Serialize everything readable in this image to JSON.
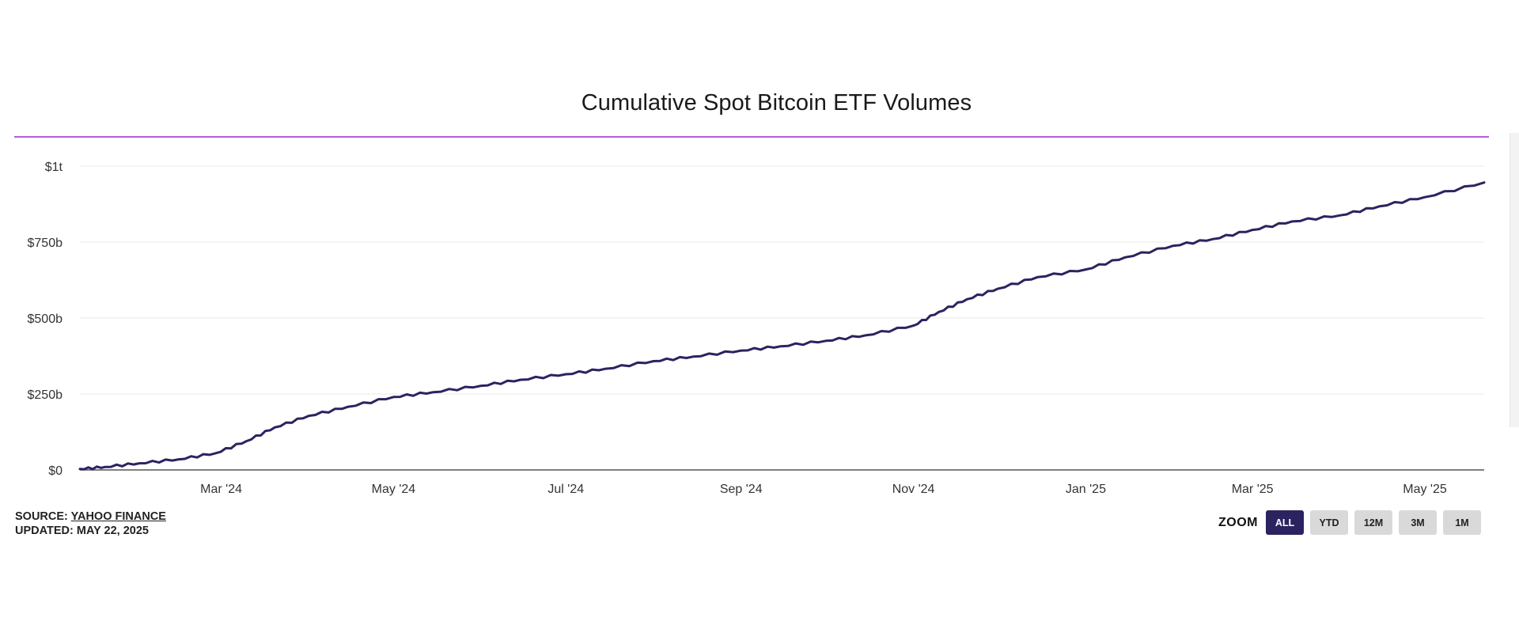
{
  "chart_data": {
    "type": "line",
    "title": "Cumulative Spot Bitcoin ETF Volumes",
    "xlabel": "",
    "ylabel": "",
    "x_ticks": [
      "Mar '24",
      "May '24",
      "Jul '24",
      "Sep '24",
      "Nov '24",
      "Jan '25",
      "Mar '25",
      "May '25"
    ],
    "y_ticks": [
      "$0",
      "$250b",
      "$500b",
      "$750b",
      "$1t"
    ],
    "ylim": [
      0,
      1000
    ],
    "y_units": "billions USD",
    "grid": true,
    "line_color": "#2b2360",
    "series": [
      {
        "x": [
          "2024-01-11",
          "2024-01-20",
          "2024-02-01",
          "2024-02-15",
          "2024-02-28",
          "2024-03-10",
          "2024-03-20",
          "2024-04-01",
          "2024-04-15",
          "2024-05-01",
          "2024-05-15",
          "2024-06-01",
          "2024-06-15",
          "2024-07-01",
          "2024-07-15",
          "2024-08-01",
          "2024-08-15",
          "2024-09-01",
          "2024-09-15",
          "2024-10-01",
          "2024-10-15",
          "2024-11-01",
          "2024-11-10",
          "2024-11-20",
          "2024-12-01",
          "2024-12-15",
          "2025-01-01",
          "2025-01-15",
          "2025-02-01",
          "2025-02-15",
          "2025-03-01",
          "2025-03-15",
          "2025-04-01",
          "2025-04-15",
          "2025-05-01",
          "2025-05-22"
        ],
        "values": [
          3,
          10,
          22,
          35,
          55,
          95,
          140,
          178,
          208,
          240,
          256,
          277,
          297,
          315,
          333,
          358,
          373,
          393,
          407,
          425,
          443,
          475,
          520,
          562,
          597,
          635,
          660,
          700,
          738,
          760,
          790,
          818,
          838,
          868,
          898,
          946
        ]
      }
    ]
  },
  "footer": {
    "source_label": "SOURCE: ",
    "source_link": "YAHOO FINANCE",
    "updated": "UPDATED: MAY 22, 2025"
  },
  "zoom": {
    "label": "ZOOM",
    "buttons": [
      "ALL",
      "YTD",
      "12M",
      "3M",
      "1M"
    ],
    "active": "ALL"
  }
}
